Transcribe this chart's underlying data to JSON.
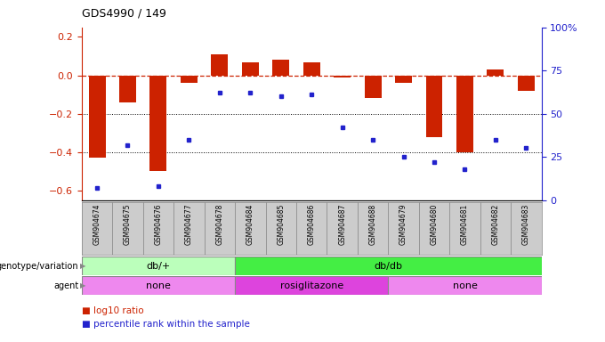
{
  "title": "GDS4990 / 149",
  "samples": [
    "GSM904674",
    "GSM904675",
    "GSM904676",
    "GSM904677",
    "GSM904678",
    "GSM904684",
    "GSM904685",
    "GSM904686",
    "GSM904687",
    "GSM904688",
    "GSM904679",
    "GSM904680",
    "GSM904681",
    "GSM904682",
    "GSM904683"
  ],
  "log10_ratio": [
    -0.43,
    -0.14,
    -0.5,
    -0.04,
    0.11,
    0.07,
    0.08,
    0.07,
    -0.01,
    -0.12,
    -0.04,
    -0.32,
    -0.4,
    0.03,
    -0.08
  ],
  "percentile_rank": [
    7,
    32,
    8,
    35,
    62,
    62,
    60,
    61,
    42,
    35,
    25,
    22,
    18,
    35,
    30
  ],
  "bar_color": "#cc2200",
  "dot_color": "#2222cc",
  "dashed_line_color": "#cc2200",
  "grid_color": "#000000",
  "ylim_left": [
    -0.65,
    0.25
  ],
  "ylim_right": [
    0,
    100
  ],
  "yticks_left": [
    -0.6,
    -0.4,
    -0.2,
    0.0,
    0.2
  ],
  "yticks_right": [
    0,
    25,
    50,
    75,
    100
  ],
  "ytick_labels_right": [
    "0",
    "25",
    "50",
    "75",
    "100%"
  ],
  "genotype_groups": [
    {
      "label": "db/+",
      "start": 0,
      "end": 5,
      "color": "#bbffbb"
    },
    {
      "label": "db/db",
      "start": 5,
      "end": 15,
      "color": "#44ee44"
    }
  ],
  "agent_groups": [
    {
      "label": "none",
      "start": 0,
      "end": 5,
      "color": "#ee88ee"
    },
    {
      "label": "rosiglitazone",
      "start": 5,
      "end": 10,
      "color": "#dd44dd"
    },
    {
      "label": "none",
      "start": 10,
      "end": 15,
      "color": "#ee88ee"
    }
  ],
  "bg_color": "#ffffff",
  "plot_bg_color": "#ffffff",
  "tick_bg_color": "#cccccc"
}
